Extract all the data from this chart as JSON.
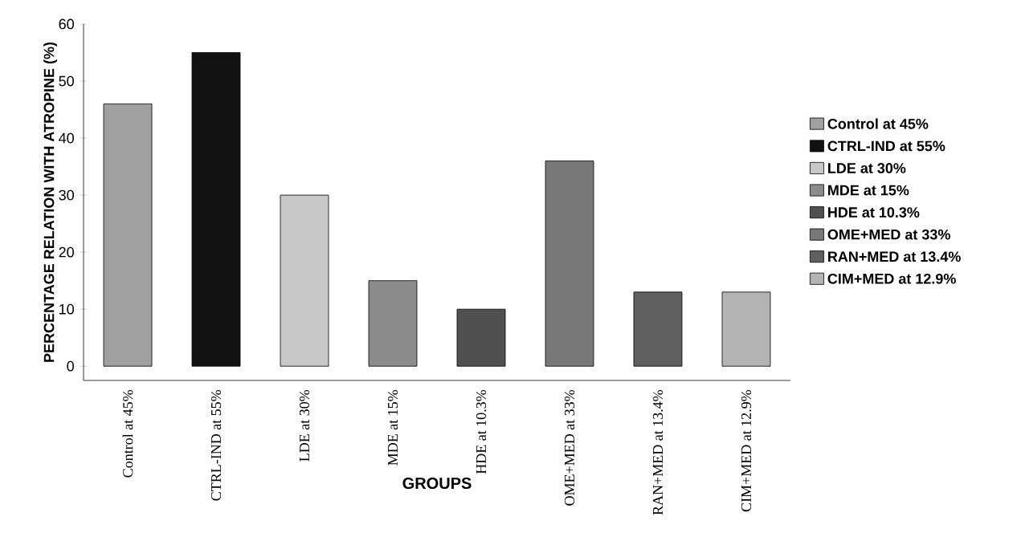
{
  "chart_data": {
    "type": "bar",
    "xlabel": "GROUPS",
    "ylabel": "PERCENTAGE RELATION WITH ATROPINE (%)",
    "categories": [
      "Control at 45%",
      "CTRL-IND at 55%",
      "LDE at 30%",
      "MDE at 15%",
      "HDE at 10.3%",
      "OME+MED at 33%",
      "RAN+MED at 13.4%",
      "CIM+MED at 12.9%"
    ],
    "series": [
      {
        "name": "Control at 45%",
        "color": "#a0a0a0",
        "values": [
          46,
          null,
          null,
          null,
          null,
          null,
          null,
          null
        ]
      },
      {
        "name": "CTRL-IND at 55%",
        "color": "#111111",
        "values": [
          null,
          55,
          null,
          null,
          null,
          null,
          null,
          null
        ]
      },
      {
        "name": "LDE at 30%",
        "color": "#c8c8c8",
        "values": [
          null,
          null,
          30,
          null,
          null,
          null,
          null,
          null
        ]
      },
      {
        "name": "MDE at 15%",
        "color": "#8c8c8c",
        "values": [
          null,
          null,
          null,
          15,
          null,
          null,
          null,
          null
        ]
      },
      {
        "name": "HDE at 10.3%",
        "color": "#505050",
        "values": [
          null,
          null,
          null,
          null,
          10,
          null,
          null,
          null
        ]
      },
      {
        "name": "OME+MED at 33%",
        "color": "#787878",
        "values": [
          null,
          null,
          null,
          null,
          null,
          36,
          null,
          null
        ]
      },
      {
        "name": "RAN+MED at 13.4%",
        "color": "#606060",
        "values": [
          null,
          null,
          null,
          null,
          null,
          null,
          13,
          null
        ]
      },
      {
        "name": "CIM+MED at 12.9%",
        "color": "#b4b4b4",
        "values": [
          null,
          null,
          null,
          null,
          null,
          null,
          null,
          13
        ]
      }
    ],
    "ylim": [
      -2.5,
      60
    ],
    "yticks": [
      0,
      10,
      20,
      30,
      40,
      50,
      60
    ],
    "grid": false,
    "legend": "right"
  }
}
